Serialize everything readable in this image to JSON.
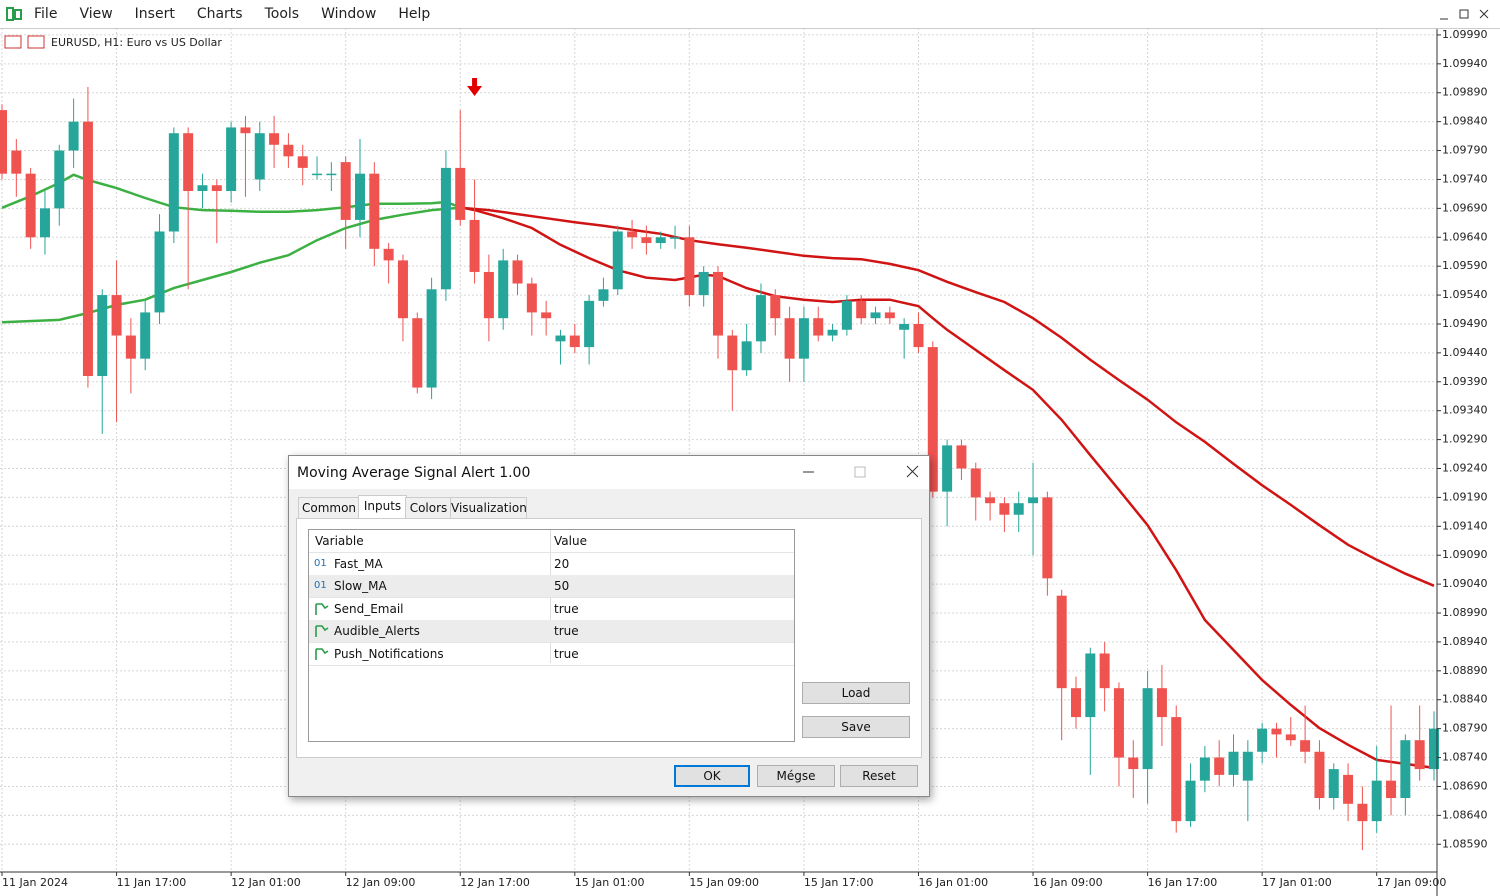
{
  "menu": [
    "File",
    "View",
    "Insert",
    "Charts",
    "Tools",
    "Window",
    "Help"
  ],
  "chart_data": {
    "type": "candlestick",
    "title": "EURUSD, H1:  Euro vs US Dollar",
    "up_color": "#26a69a",
    "down_color": "#ef5350",
    "grid": true,
    "candles": [
      [
        1.0986,
        1.0987,
        1.0974,
        1.0975
      ],
      [
        1.0979,
        1.0981,
        1.0971,
        1.0975
      ],
      [
        1.0975,
        1.0976,
        1.0962,
        1.0964
      ],
      [
        1.0964,
        1.0972,
        1.0961,
        1.0969
      ],
      [
        1.0969,
        1.098,
        1.0966,
        1.0979
      ],
      [
        1.0979,
        1.0988,
        1.0976,
        1.0984
      ],
      [
        1.0984,
        1.099,
        1.0938,
        1.094
      ],
      [
        1.094,
        1.0955,
        1.093,
        1.0954
      ],
      [
        1.0954,
        1.096,
        1.0932,
        1.0947
      ],
      [
        1.0947,
        1.095,
        1.0937,
        1.0943
      ],
      [
        1.0943,
        1.0953,
        1.0941,
        1.0951
      ],
      [
        1.0951,
        1.0968,
        1.0949,
        1.0965
      ],
      [
        1.0965,
        1.0983,
        1.0963,
        1.0982
      ],
      [
        1.0982,
        1.0983,
        1.0955,
        1.0972
      ],
      [
        1.0972,
        1.0975,
        1.0969,
        1.0973
      ],
      [
        1.0973,
        1.0974,
        1.0963,
        1.0972
      ],
      [
        1.0972,
        1.0984,
        1.097,
        1.0983
      ],
      [
        1.0983,
        1.0985,
        1.0971,
        1.0982
      ],
      [
        1.0974,
        1.0984,
        1.0972,
        1.0982
      ],
      [
        1.0982,
        1.0985,
        1.0976,
        1.098
      ],
      [
        1.098,
        1.0982,
        1.0976,
        1.0978
      ],
      [
        1.0978,
        1.098,
        1.0973,
        1.0976
      ],
      [
        1.0975,
        1.0978,
        1.0974,
        1.0975
      ],
      [
        1.0975,
        1.0977,
        1.0972,
        1.0975
      ],
      [
        1.0977,
        1.0978,
        1.0962,
        1.0967
      ],
      [
        1.0967,
        1.0981,
        1.0964,
        1.0975
      ],
      [
        1.0975,
        1.0977,
        1.0959,
        1.0962
      ],
      [
        1.0962,
        1.0963,
        1.0956,
        1.096
      ],
      [
        1.096,
        1.0961,
        1.0946,
        1.095
      ],
      [
        1.095,
        1.0951,
        1.0937,
        1.0938
      ],
      [
        1.0938,
        1.0957,
        1.0936,
        1.0955
      ],
      [
        1.0955,
        1.0979,
        1.0953,
        1.0976
      ],
      [
        1.0976,
        1.0986,
        1.0966,
        1.0967
      ],
      [
        1.0967,
        1.0974,
        1.0956,
        1.0958
      ],
      [
        1.0958,
        1.0961,
        1.0946,
        1.095
      ],
      [
        1.095,
        1.0962,
        1.0948,
        1.096
      ],
      [
        1.096,
        1.0961,
        1.0954,
        1.0956
      ],
      [
        1.0956,
        1.0957,
        1.0947,
        1.0951
      ],
      [
        1.0951,
        1.0953,
        1.0947,
        1.095
      ],
      [
        1.0946,
        1.0948,
        1.0942,
        1.0947
      ],
      [
        1.0947,
        1.0949,
        1.0944,
        1.0945
      ],
      [
        1.0945,
        1.0954,
        1.0942,
        1.0953
      ],
      [
        1.0953,
        1.0957,
        1.0952,
        1.0955
      ],
      [
        1.0955,
        1.0966,
        1.0954,
        1.0965
      ],
      [
        1.0965,
        1.0967,
        1.0962,
        1.0964
      ],
      [
        1.0964,
        1.0966,
        1.0961,
        1.0963
      ],
      [
        1.0963,
        1.0965,
        1.0962,
        1.0964
      ],
      [
        1.0964,
        1.0966,
        1.0962,
        1.0964
      ],
      [
        1.0964,
        1.0966,
        1.0952,
        1.0954
      ],
      [
        1.0954,
        1.0959,
        1.0952,
        1.0958
      ],
      [
        1.0958,
        1.0959,
        1.0943,
        1.0947
      ],
      [
        1.0947,
        1.0948,
        1.0934,
        1.0941
      ],
      [
        1.0941,
        1.0949,
        1.094,
        1.0946
      ],
      [
        1.0946,
        1.0956,
        1.0944,
        1.0954
      ],
      [
        1.0954,
        1.0955,
        1.0947,
        1.095
      ],
      [
        1.095,
        1.0952,
        1.0939,
        1.0943
      ],
      [
        1.0943,
        1.0952,
        1.0939,
        1.095
      ],
      [
        1.095,
        1.0952,
        1.0946,
        1.0947
      ],
      [
        1.0947,
        1.0949,
        1.0946,
        1.0948
      ],
      [
        1.0948,
        1.0954,
        1.0947,
        1.0953
      ],
      [
        1.0953,
        1.0954,
        1.0949,
        1.095
      ],
      [
        1.095,
        1.0952,
        1.0949,
        1.0951
      ],
      [
        1.0951,
        1.0952,
        1.0949,
        1.095
      ],
      [
        1.0948,
        1.095,
        1.0943,
        1.0949
      ],
      [
        1.0949,
        1.0951,
        1.0944,
        1.0945
      ],
      [
        1.0945,
        1.0946,
        1.0919,
        1.092
      ],
      [
        1.092,
        1.0929,
        1.0914,
        1.0928
      ],
      [
        1.0928,
        1.0929,
        1.0922,
        1.0924
      ],
      [
        1.0924,
        1.0925,
        1.0915,
        1.0919
      ],
      [
        1.0919,
        1.092,
        1.0915,
        1.0918
      ],
      [
        1.0918,
        1.0919,
        1.0913,
        1.0916
      ],
      [
        1.0916,
        1.092,
        1.0913,
        1.0918
      ],
      [
        1.0918,
        1.0925,
        1.0909,
        1.0919
      ],
      [
        1.0919,
        1.092,
        1.0902,
        1.0905
      ],
      [
        1.0902,
        1.0903,
        1.0877,
        1.0886
      ],
      [
        1.0886,
        1.0888,
        1.0879,
        1.0881
      ],
      [
        1.0881,
        1.0893,
        1.0871,
        1.0892
      ],
      [
        1.0892,
        1.0894,
        1.0882,
        1.0886
      ],
      [
        1.0886,
        1.0887,
        1.0869,
        1.0874
      ],
      [
        1.0874,
        1.0877,
        1.0867,
        1.0872
      ],
      [
        1.0872,
        1.0889,
        1.0866,
        1.0886
      ],
      [
        1.0886,
        1.089,
        1.0876,
        1.0881
      ],
      [
        1.0881,
        1.0883,
        1.0861,
        1.0863
      ],
      [
        1.0863,
        1.0873,
        1.0862,
        1.087
      ],
      [
        1.087,
        1.0876,
        1.0868,
        1.0874
      ],
      [
        1.0874,
        1.0877,
        1.0869,
        1.0871
      ],
      [
        1.0871,
        1.0878,
        1.0869,
        1.0875
      ],
      [
        1.087,
        1.0877,
        1.0863,
        1.0875
      ],
      [
        1.0875,
        1.088,
        1.0873,
        1.0879
      ],
      [
        1.0879,
        1.088,
        1.0874,
        1.0878
      ],
      [
        1.0878,
        1.0881,
        1.0876,
        1.0877
      ],
      [
        1.0877,
        1.0883,
        1.0873,
        1.0875
      ],
      [
        1.0875,
        1.0877,
        1.0865,
        1.0867
      ],
      [
        1.0867,
        1.0873,
        1.0865,
        1.0872
      ],
      [
        1.0871,
        1.0873,
        1.0863,
        1.0866
      ],
      [
        1.0866,
        1.0869,
        1.0858,
        1.0863
      ],
      [
        1.0863,
        1.0876,
        1.0861,
        1.087
      ],
      [
        1.087,
        1.0883,
        1.0864,
        1.0867
      ],
      [
        1.0867,
        1.0878,
        1.0864,
        1.0877
      ],
      [
        1.0877,
        1.0883,
        1.087,
        1.0872
      ],
      [
        1.0872,
        1.0882,
        1.087,
        1.0879
      ]
    ],
    "lines": [
      {
        "x": [
          0,
          2,
          4,
          5,
          6,
          8,
          10,
          12,
          14,
          16,
          18,
          20,
          22,
          24,
          26,
          28,
          30,
          31,
          32,
          33,
          35,
          37,
          39,
          41,
          43,
          45,
          47,
          49,
          50,
          52,
          54,
          56,
          58,
          60,
          62,
          64,
          65,
          66,
          68,
          70,
          72,
          74,
          76,
          78,
          80,
          82,
          84,
          86,
          88,
          90,
          92,
          94,
          96,
          98,
          100
        ],
        "values": [
          1.09691,
          1.09711,
          1.09734,
          1.09748,
          1.09739,
          1.09725,
          1.09708,
          1.09692,
          1.09687,
          1.09686,
          1.09684,
          1.09684,
          1.09687,
          1.09692,
          1.09698,
          1.09698,
          1.09699,
          1.09701,
          1.09692,
          1.09687,
          1.09673,
          1.09656,
          1.09627,
          1.09604,
          1.09583,
          1.0957,
          1.09566,
          1.09575,
          1.09573,
          1.09552,
          1.09538,
          1.09532,
          1.09528,
          1.09532,
          1.09532,
          1.09521,
          1.095,
          1.0948,
          1.09445,
          1.0941,
          1.09376,
          1.09324,
          1.09263,
          1.09203,
          1.09142,
          1.09064,
          1.08978,
          1.08926,
          1.08874,
          1.08831,
          1.08791,
          1.08762,
          1.08736,
          1.08729,
          1.08722
        ]
      },
      {
        "x": [
          0,
          4,
          6,
          8,
          10,
          12,
          14,
          16,
          18,
          20,
          22,
          24,
          26,
          28,
          30,
          32,
          34,
          36,
          38,
          40,
          42,
          44,
          46,
          48,
          50,
          52,
          54,
          56,
          58,
          60,
          62,
          64,
          66,
          68,
          70,
          72,
          74,
          76,
          78,
          80,
          82,
          84,
          86,
          88,
          90,
          92,
          94,
          96,
          98,
          100
        ],
        "values": [
          1.09493,
          1.09497,
          1.09509,
          1.09523,
          1.09532,
          1.09552,
          1.09566,
          1.0958,
          1.09596,
          1.09609,
          1.09635,
          1.09656,
          1.0967,
          1.09679,
          1.09687,
          1.09691,
          1.09687,
          1.0968,
          1.09673,
          1.09666,
          1.0966,
          1.09653,
          1.09646,
          1.09635,
          1.09628,
          1.09622,
          1.09615,
          1.09608,
          1.09604,
          1.09602,
          1.09594,
          1.09583,
          1.09563,
          1.09545,
          1.09528,
          1.095,
          1.09466,
          1.09428,
          1.09393,
          1.09359,
          1.0932,
          1.09286,
          1.09248,
          1.09211,
          1.09177,
          1.09142,
          1.09108,
          1.09082,
          1.09058,
          1.09037
        ]
      }
    ],
    "trend_up_color": "#3cb043",
    "trend_down_color": "#d01414",
    "signal_index": 33,
    "signal_color": "#e00000",
    "xlim": [
      -0.14,
      100.21
    ],
    "ylim": [
      1.08542,
      1.10002
    ],
    "xticks": [
      {
        "value": 0,
        "label": "11 Jan 2024"
      },
      {
        "value": 8,
        "label": "11 Jan 17:00"
      },
      {
        "value": 16,
        "label": "12 Jan 01:00"
      },
      {
        "value": 24,
        "label": "12 Jan 09:00"
      },
      {
        "value": 32,
        "label": "12 Jan 17:00"
      },
      {
        "value": 40,
        "label": "15 Jan 01:00"
      },
      {
        "value": 48,
        "label": "15 Jan 09:00"
      },
      {
        "value": 56,
        "label": "15 Jan 17:00"
      },
      {
        "value": 64,
        "label": "16 Jan 01:00"
      },
      {
        "value": 72,
        "label": "16 Jan 09:00"
      },
      {
        "value": 80,
        "label": "16 Jan 17:00"
      },
      {
        "value": 88,
        "label": "17 Jan 01:00"
      },
      {
        "value": 96,
        "label": "17 Jan 09:00"
      }
    ],
    "yticks": [
      {
        "value": 1.0999,
        "label": "1.09990"
      },
      {
        "value": 1.0994,
        "label": "1.09940"
      },
      {
        "value": 1.0989,
        "label": "1.09890"
      },
      {
        "value": 1.0984,
        "label": "1.09840"
      },
      {
        "value": 1.0979,
        "label": "1.09790"
      },
      {
        "value": 1.0974,
        "label": "1.09740"
      },
      {
        "value": 1.0969,
        "label": "1.09690"
      },
      {
        "value": 1.0964,
        "label": "1.09640"
      },
      {
        "value": 1.0959,
        "label": "1.09590"
      },
      {
        "value": 1.0954,
        "label": "1.09540"
      },
      {
        "value": 1.0949,
        "label": "1.09490"
      },
      {
        "value": 1.0944,
        "label": "1.09440"
      },
      {
        "value": 1.0939,
        "label": "1.09390"
      },
      {
        "value": 1.0934,
        "label": "1.09340"
      },
      {
        "value": 1.0929,
        "label": "1.09290"
      },
      {
        "value": 1.0924,
        "label": "1.09240"
      },
      {
        "value": 1.0919,
        "label": "1.09190"
      },
      {
        "value": 1.0914,
        "label": "1.09140"
      },
      {
        "value": 1.0909,
        "label": "1.09090"
      },
      {
        "value": 1.0904,
        "label": "1.09040"
      },
      {
        "value": 1.0899,
        "label": "1.08990"
      },
      {
        "value": 1.0894,
        "label": "1.08940"
      },
      {
        "value": 1.0889,
        "label": "1.08890"
      },
      {
        "value": 1.0884,
        "label": "1.08840"
      },
      {
        "value": 1.0879,
        "label": "1.08790"
      },
      {
        "value": 1.0874,
        "label": "1.08740"
      },
      {
        "value": 1.0869,
        "label": "1.08690"
      },
      {
        "value": 1.0864,
        "label": "1.08640"
      },
      {
        "value": 1.0859,
        "label": "1.08590"
      }
    ]
  },
  "dialog": {
    "title": "Moving Average Signal Alert 1.00",
    "tabs": [
      "Common",
      "Inputs",
      "Colors",
      "Visualization"
    ],
    "columns": [
      "Variable",
      "Value"
    ],
    "rows": [
      {
        "icon": "01",
        "variable": "Fast_MA",
        "value": "20"
      },
      {
        "icon": "01",
        "variable": "Slow_MA",
        "value": "50"
      },
      {
        "variable": "Send_Email",
        "value": "true"
      },
      {
        "variable": "Audible_Alerts",
        "value": "true"
      },
      {
        "variable": "Push_Notifications",
        "value": "true"
      }
    ],
    "side_buttons": [
      "Load",
      "Save"
    ],
    "buttons": [
      "OK",
      "Mégse",
      "Reset"
    ]
  }
}
